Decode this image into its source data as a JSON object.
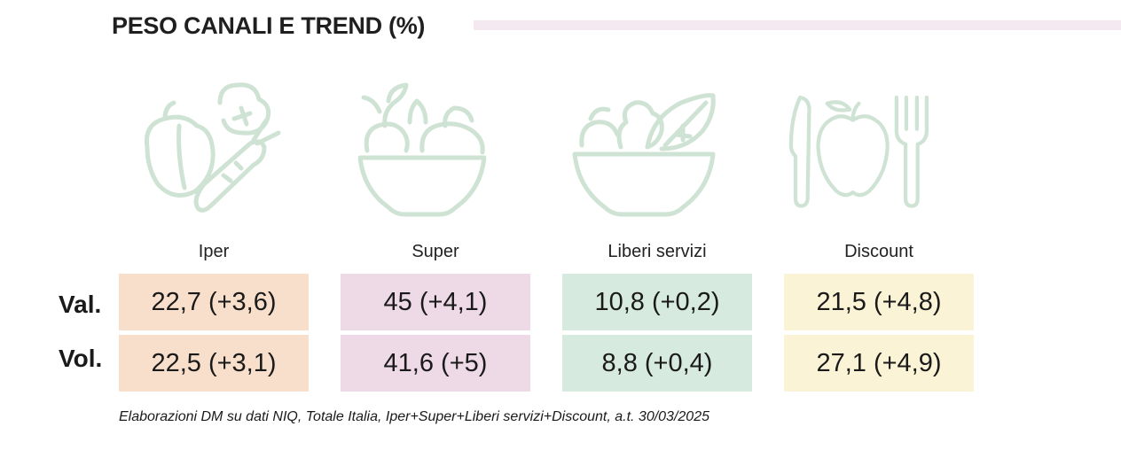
{
  "title": "PESO CANALI E TREND (%)",
  "accent_colors": {
    "title_bar": "#f4e9f0",
    "icon_stroke": "#cfe3d4",
    "Iper": "#f8dfcb",
    "Super": "#eed9e6",
    "Liberi servizi": "#d7eae0",
    "Discount": "#fbf3d5"
  },
  "icons": [
    "vegetables-icon",
    "fruit-bowl-icon",
    "salad-bowl-icon",
    "cutlery-apple-icon"
  ],
  "row_labels": [
    "Val.",
    "Vol."
  ],
  "chart_data": {
    "type": "table",
    "title": "PESO CANALI E TREND (%)",
    "columns": [
      "Iper",
      "Super",
      "Liberi servizi",
      "Discount"
    ],
    "rows": [
      {
        "label": "Val.",
        "cells": [
          "22,7 (+3,6)",
          "45 (+4,1)",
          "10,8 (+0,2)",
          "21,5 (+4,8)"
        ],
        "share": [
          22.7,
          45,
          10.8,
          21.5
        ],
        "trend": [
          3.6,
          4.1,
          0.2,
          4.8
        ]
      },
      {
        "label": "Vol.",
        "cells": [
          "22,5 (+3,1)",
          "41,6 (+5)",
          "8,8 (+0,4)",
          "27,1 (+4,9)"
        ],
        "share": [
          22.5,
          41.6,
          8.8,
          27.1
        ],
        "trend": [
          3.1,
          5,
          0.4,
          4.9
        ]
      }
    ]
  },
  "footnote": "Elaborazioni DM su dati NIQ, Totale Italia, Iper+Super+Liberi servizi+Discount, a.t. 30/03/2025"
}
